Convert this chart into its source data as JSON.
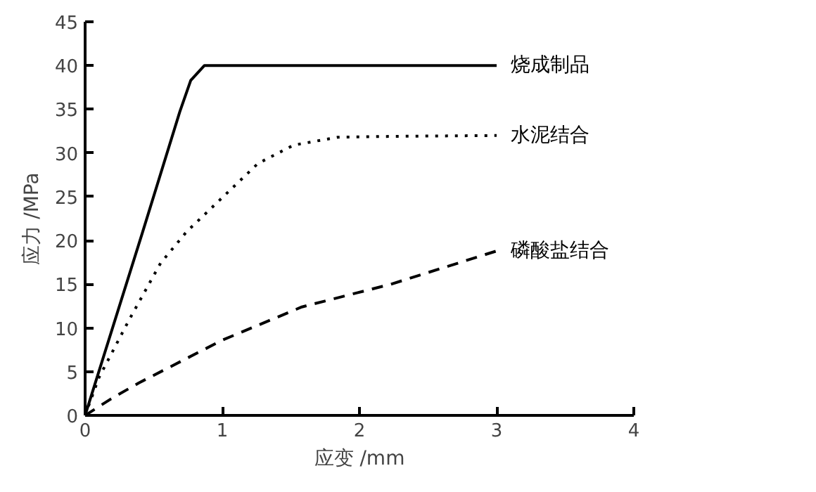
{
  "chart_data": {
    "type": "line",
    "xlabel": "应变 /mm",
    "ylabel": "应力 /MPa",
    "xlim": [
      0,
      4
    ],
    "ylim": [
      0,
      45
    ],
    "xticks": [
      0,
      1,
      2,
      3,
      4
    ],
    "yticks": [
      0,
      5,
      10,
      15,
      20,
      25,
      30,
      35,
      40,
      45
    ],
    "grid": false,
    "legend": false,
    "marker": "none",
    "series": [
      {
        "name": "烧成制品",
        "color": "#000000",
        "line_style": "solid",
        "x": [
          0,
          0.42,
          0.69,
          0.77,
          0.87,
          3
        ],
        "values": [
          0,
          21,
          34.7,
          38.3,
          40,
          40
        ]
      },
      {
        "name": "水泥结合",
        "color": "#000000",
        "line_style": "dotted",
        "x": [
          0,
          0.1,
          0.32,
          0.55,
          0.74,
          1.0,
          1.26,
          1.52,
          1.84,
          2.23,
          3
        ],
        "values": [
          0,
          4.3,
          10.9,
          17.4,
          21,
          24.9,
          28.8,
          30.9,
          31.8,
          31.9,
          32
        ]
      },
      {
        "name": "磷酸盐结合",
        "color": "#000000",
        "line_style": "dashed",
        "x": [
          0,
          0.19,
          0.39,
          1.0,
          1.58,
          2.23,
          3
        ],
        "values": [
          0,
          1.9,
          3.7,
          8.6,
          12.4,
          15,
          18.8
        ]
      }
    ]
  }
}
